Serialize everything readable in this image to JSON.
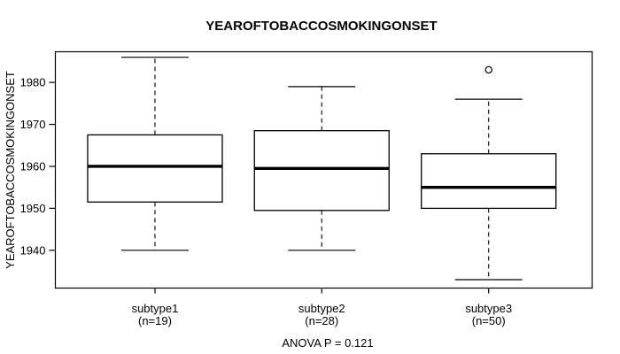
{
  "chart_data": {
    "type": "boxplot",
    "title": "YEAROFTOBACCOSMOKINGONSET",
    "ylabel": "YEAROFTOBACCOSMOKINGONSET",
    "xlabel": "",
    "annotation": "ANOVA P = 0.121",
    "ylim": [
      1931,
      1987.3
    ],
    "yticks": [
      1940,
      1950,
      1960,
      1970,
      1980
    ],
    "grid": false,
    "legend": "none",
    "groups": [
      {
        "label": "subtype1",
        "sublabel": "(n=19)",
        "n": 19,
        "whisker_low": 1940,
        "q1": 1951.5,
        "median": 1960,
        "q3": 1967.5,
        "whisker_high": 1986,
        "outliers": []
      },
      {
        "label": "subtype2",
        "sublabel": "(n=28)",
        "n": 28,
        "whisker_low": 1940,
        "q1": 1949.5,
        "median": 1959.5,
        "q3": 1968.5,
        "whisker_high": 1979,
        "outliers": []
      },
      {
        "label": "subtype3",
        "sublabel": "(n=50)",
        "n": 50,
        "whisker_low": 1933,
        "q1": 1950,
        "median": 1955,
        "q3": 1963,
        "whisker_high": 1976,
        "outliers": [
          1983
        ]
      }
    ],
    "colors": {
      "stroke": "#000000",
      "box_fill": "#ffffff",
      "background": "#ffffff"
    }
  }
}
